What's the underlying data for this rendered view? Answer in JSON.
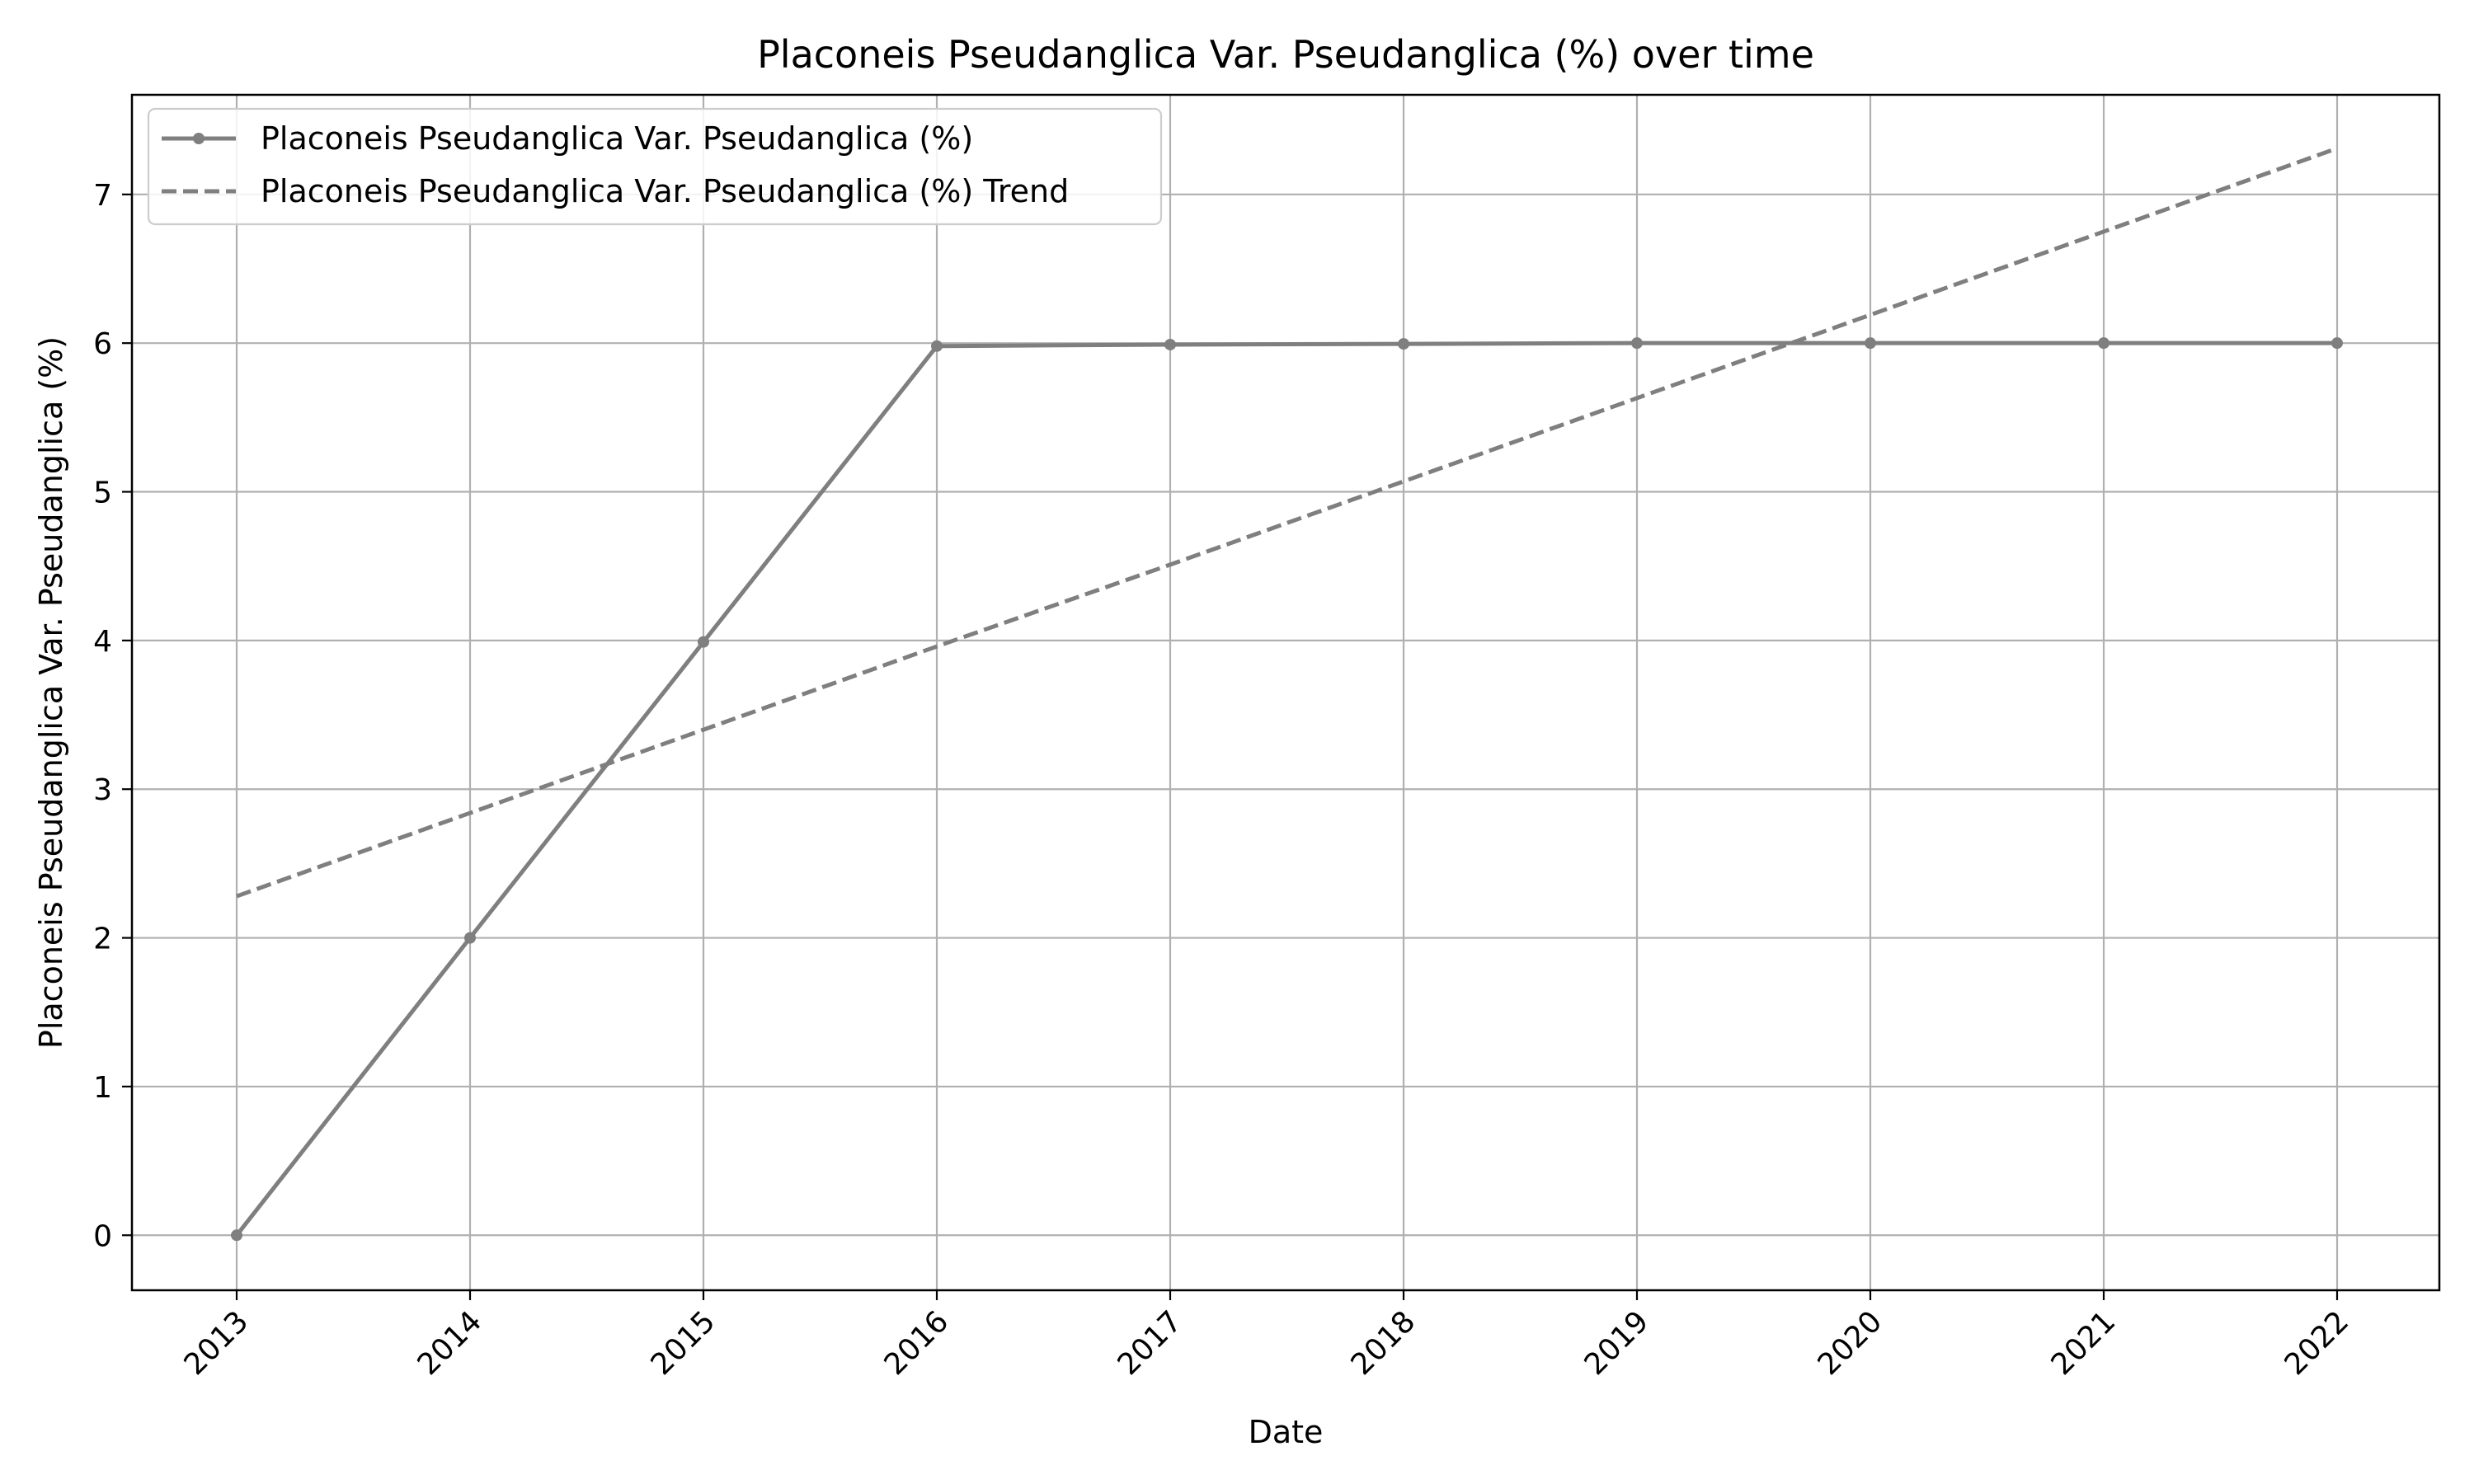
{
  "chart_data": {
    "type": "line",
    "title": "Placoneis Pseudanglica Var. Pseudanglica (%) over time",
    "xlabel": "Date",
    "ylabel": "Placoneis Pseudanglica Var. Pseudanglica (%)",
    "x": [
      "2013",
      "2014",
      "2015",
      "2016",
      "2017",
      "2018",
      "2019",
      "2020",
      "2021",
      "2022"
    ],
    "ylim": [
      -0.37,
      7.67
    ],
    "yticks": [
      "0",
      "1",
      "2",
      "3",
      "4",
      "5",
      "6",
      "7"
    ],
    "grid": true,
    "legend_position": "top-left",
    "series": [
      {
        "name": "Placoneis Pseudanglica Var. Pseudanglica (%)",
        "style": "solid-with-markers",
        "color": "#7f7f7f",
        "values": [
          0.0,
          2.0,
          3.99,
          5.98,
          5.99,
          5.995,
          6.0,
          6.0,
          6.0,
          6.0
        ]
      },
      {
        "name": "Placoneis Pseudanglica Var. Pseudanglica (%) Trend",
        "style": "dashed",
        "color": "#7f7f7f",
        "values": [
          2.28,
          2.84,
          3.4,
          3.96,
          4.51,
          5.07,
          5.63,
          6.19,
          6.75,
          7.31
        ]
      }
    ]
  }
}
